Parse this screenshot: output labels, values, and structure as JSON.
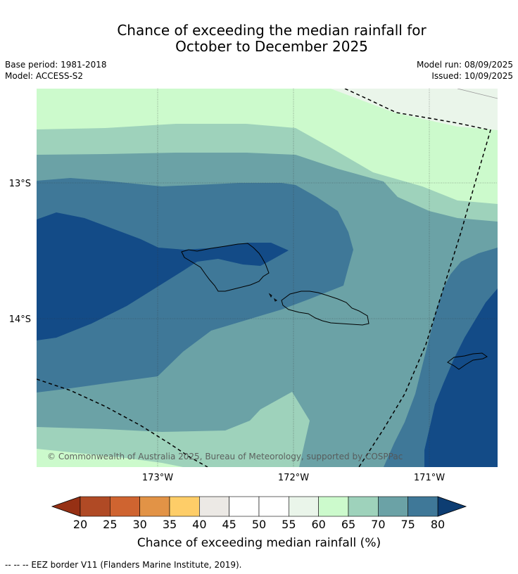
{
  "header": {
    "title_line1": "Chance of exceeding the median rainfall for",
    "title_line2": "October to December 2025",
    "base_period": "Base period: 1981-2018",
    "model": "Model: ACCESS-S2",
    "model_run": "Model run: 08/09/2025",
    "issued": "Issued: 10/09/2025"
  },
  "map": {
    "lon_range": [
      -173.89,
      -170.49
    ],
    "lat_range": [
      -15.07,
      -12.28
    ],
    "lon_ticks": [
      {
        "value": -173,
        "label": "173°W"
      },
      {
        "value": -172,
        "label": "172°W"
      },
      {
        "value": -171,
        "label": "171°W"
      }
    ],
    "lat_ticks": [
      {
        "value": -13,
        "label": "13°S"
      },
      {
        "value": -14,
        "label": "14°S"
      }
    ],
    "gridlines": true,
    "copyright": "© Commonwealth of Australia 2025, Bureau of Meteorology, supported by COSPPac"
  },
  "chart_data": {
    "type": "heatmap",
    "title": "Chance of exceeding the median rainfall for October to December 2025",
    "units": "%",
    "levels": [
      20,
      25,
      30,
      35,
      40,
      45,
      50,
      55,
      60,
      65,
      70,
      75,
      80
    ],
    "level_colors": [
      "#b04a25",
      "#cf6430",
      "#e29346",
      "#fecd68",
      "#ece9e5",
      "#ffffff",
      "#ffffff",
      "#eaf5ea",
      "#ccfacc",
      "#9ed2bb",
      "#6ba2a6",
      "#3f7898",
      "#134b87"
    ],
    "below_color": "#963014",
    "above_color": "#0d3d72",
    "colorbar_label": "Chance of exceeding median rainfall (%)",
    "contour_bands_shown": [
      "55-60",
      "60-65",
      "65-70",
      "70-75",
      "75-80",
      "80+"
    ],
    "xlabel": "",
    "ylabel": ""
  },
  "colors": {
    "band_55_60": "#eaf5ea",
    "band_60_65": "#ccfacc",
    "band_65_70": "#9ed2bb",
    "band_70_75": "#6ba2a6",
    "band_75_80": "#3f7898",
    "band_80_plus": "#134b87"
  },
  "footnote": "--  --  -- EEZ border V11 (Flanders Marine Institute, 2019)."
}
